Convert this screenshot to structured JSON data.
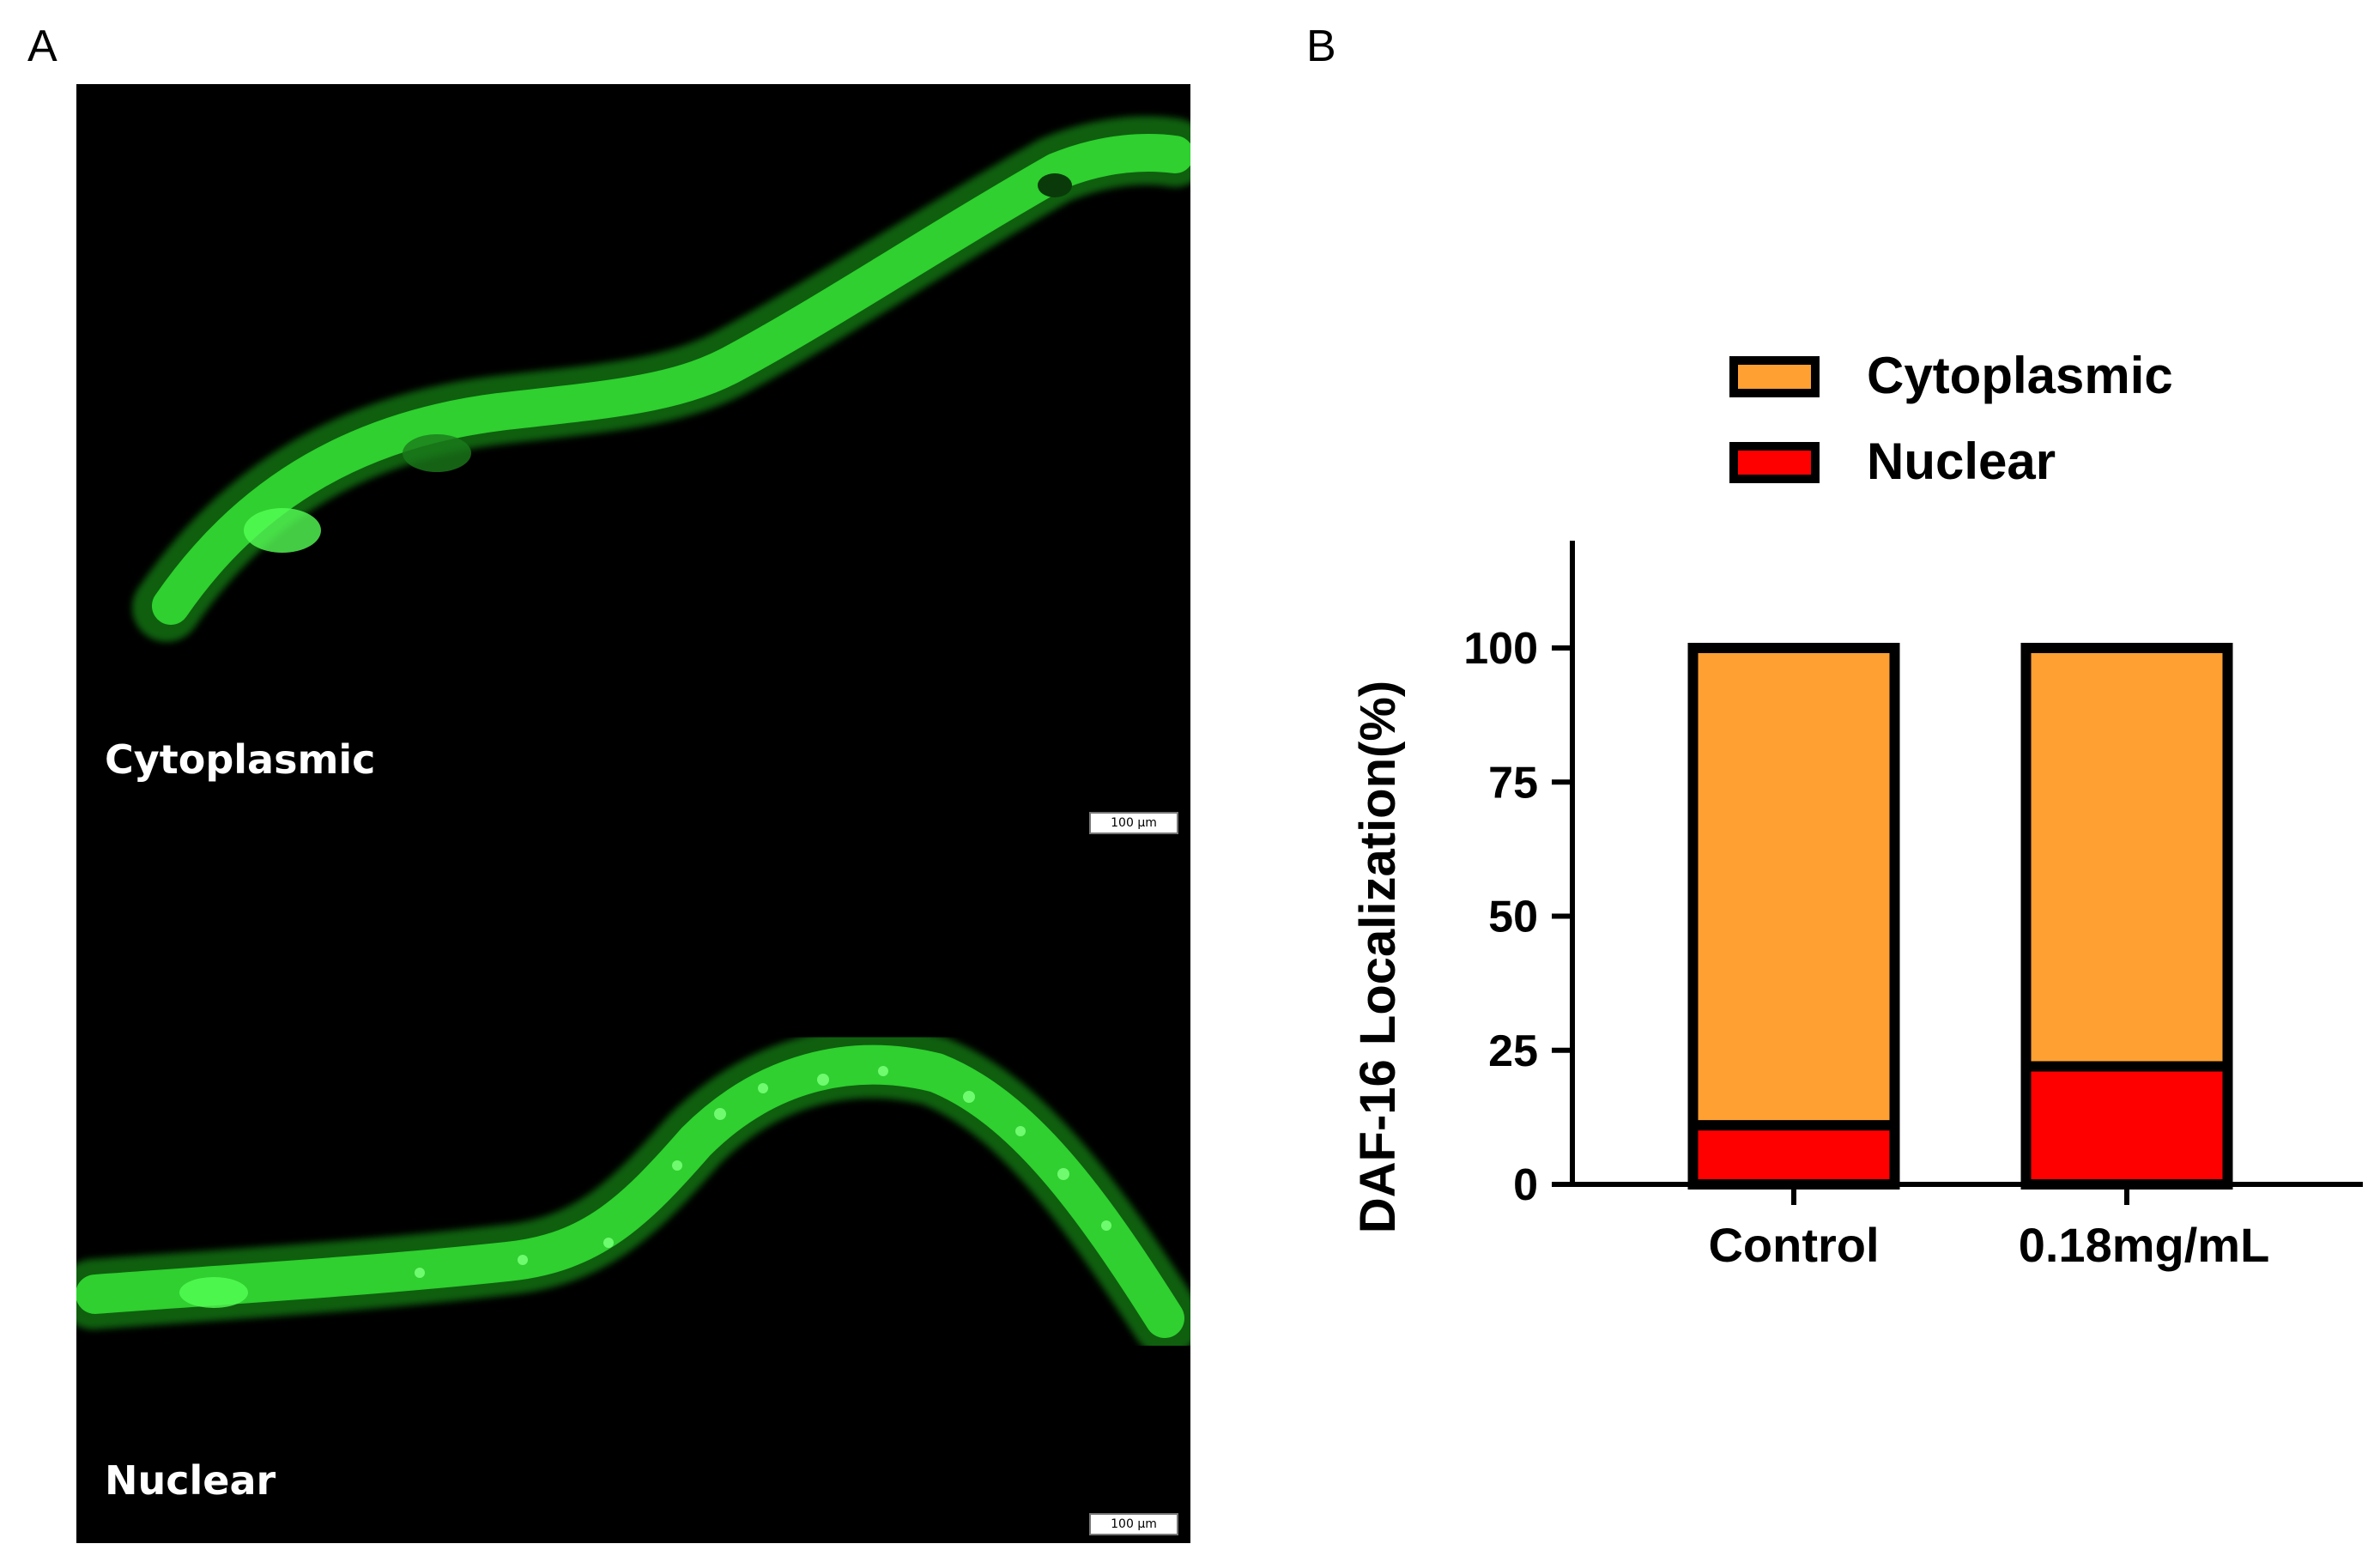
{
  "panels": {
    "a_letter": "A",
    "b_letter": "B"
  },
  "micrograph": {
    "label_top": "Cytoplasmic",
    "label_bottom": "Nuclear",
    "scale_bar_text": "100 μm",
    "worm_color": "#2fd92f"
  },
  "chart_data": {
    "type": "bar",
    "stacked": true,
    "categories": [
      "Control",
      "0.18mg/mL"
    ],
    "series": [
      {
        "name": "Nuclear",
        "values": [
          11,
          22
        ],
        "color": "#ff0000"
      },
      {
        "name": "Cytoplasmic",
        "values": [
          89,
          78
        ],
        "color": "#ffa033"
      }
    ],
    "ylabel": "DAF-16 Localization(%)",
    "xlabel": "",
    "ylim": [
      0,
      120
    ],
    "yticks": [
      0,
      25,
      50,
      75,
      100
    ],
    "legend_order": [
      "Cytoplasmic",
      "Nuclear"
    ],
    "legend_position": "top"
  }
}
